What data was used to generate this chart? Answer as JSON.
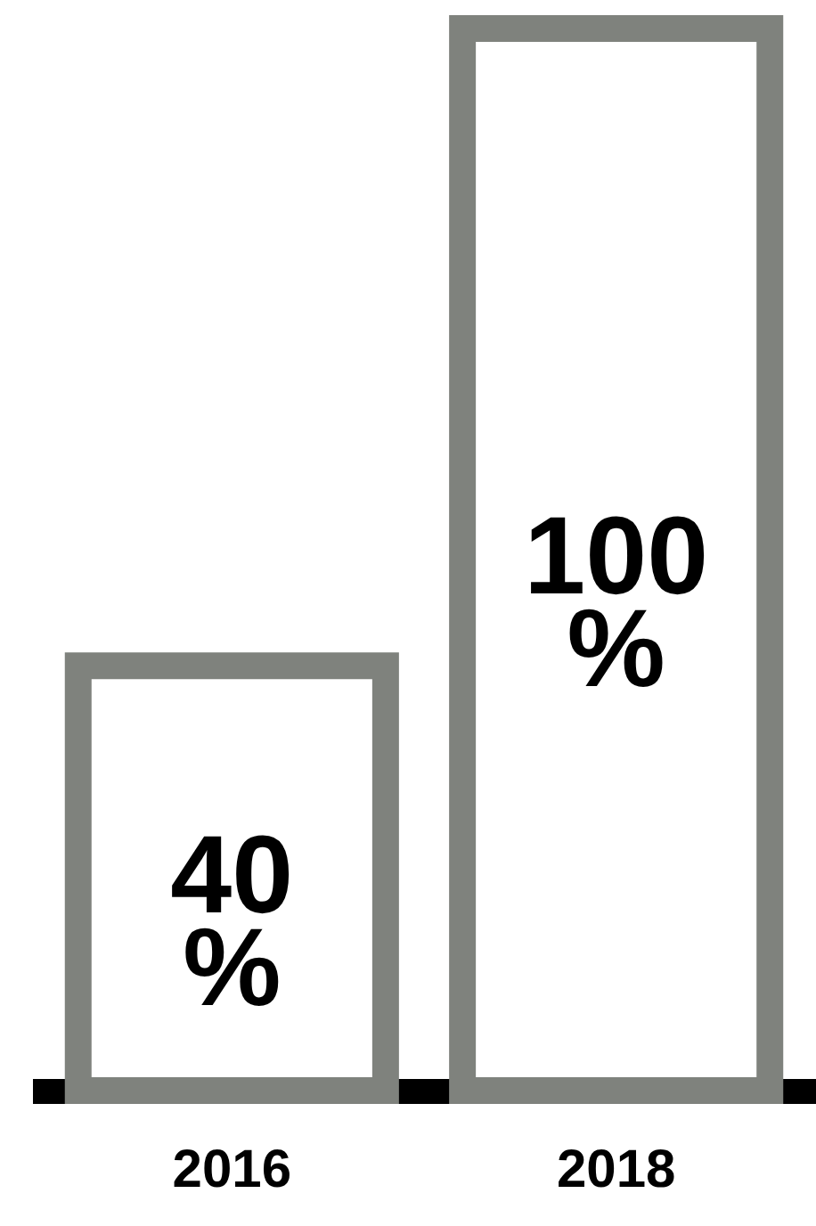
{
  "chart_data": {
    "type": "bar",
    "categories": [
      "2016",
      "2018"
    ],
    "values": [
      40,
      100
    ],
    "value_labels": [
      "40 %",
      "100 %"
    ],
    "color": "#7f827d",
    "ylim": [
      0,
      100
    ],
    "grid": false
  }
}
